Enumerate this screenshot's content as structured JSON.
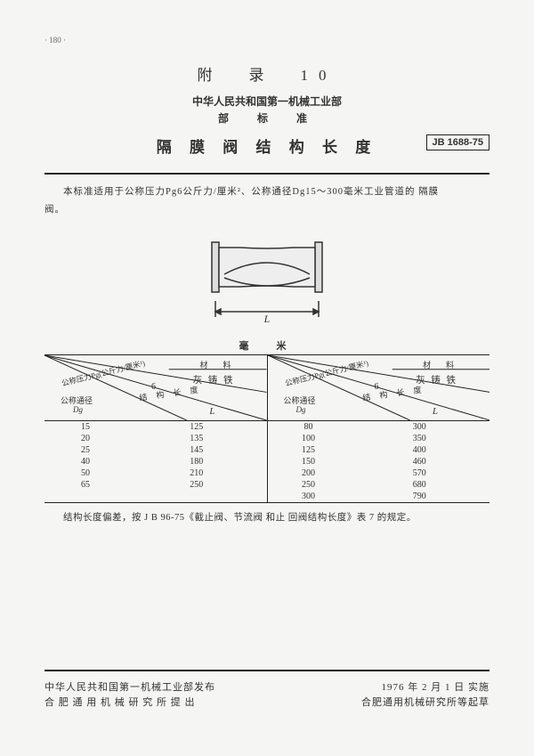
{
  "page_number": "· 180 ·",
  "header": {
    "appendix": "附　录　10",
    "ministry": "中华人民共和国第一机械工业部",
    "standard_label": "部　标　准",
    "title": "隔 膜 阀 结 构 长 度",
    "code": "JB 1688-75"
  },
  "scope_line1": "本标准适用于公称压力Pg6公斤力/厘米²、公称通径Dg15～300毫米工业管道的 隔膜",
  "scope_line2": "阀。",
  "diagram": {
    "length_symbol": "L",
    "stroke": "#333333",
    "fill": "#dddddd"
  },
  "unit": "毫　米",
  "table_header": {
    "material_label": "材　料",
    "material_value": "灰 铸 铁",
    "pressure_label": "公称压力Pg(公斤力/厘米²)",
    "pressure_value": "6",
    "struct_label": "结 构 长 度",
    "dn_label": "公称通径",
    "dn_symbol": "Dg",
    "length_symbol": "L"
  },
  "left_table": {
    "rows": [
      {
        "dn": "15",
        "L": "125"
      },
      {
        "dn": "20",
        "L": "135"
      },
      {
        "dn": "25",
        "L": "145"
      },
      {
        "dn": "40",
        "L": "180"
      },
      {
        "dn": "50",
        "L": "210"
      },
      {
        "dn": "65",
        "L": "250"
      }
    ]
  },
  "right_table": {
    "rows": [
      {
        "dn": "80",
        "L": "300"
      },
      {
        "dn": "100",
        "L": "350"
      },
      {
        "dn": "125",
        "L": "400"
      },
      {
        "dn": "150",
        "L": "460"
      },
      {
        "dn": "200",
        "L": "570"
      },
      {
        "dn": "250",
        "L": "680"
      },
      {
        "dn": "300",
        "L": "790"
      }
    ]
  },
  "note": "结构长度偏差，按 J B 96-75《截止阀、节流阀 和止 回阀结构长度》表 7 的规定。",
  "footer": {
    "left1": "中华人民共和国第一机械工业部发布",
    "left2": "合 肥 通 用 机 械 研 究 所 提 出",
    "right1": "1976 年 2 月 1 日 实施",
    "right2": "合肥通用机械研究所等起草"
  },
  "colors": {
    "text": "#333333",
    "border": "#222222",
    "bg": "#f5f5f3"
  }
}
